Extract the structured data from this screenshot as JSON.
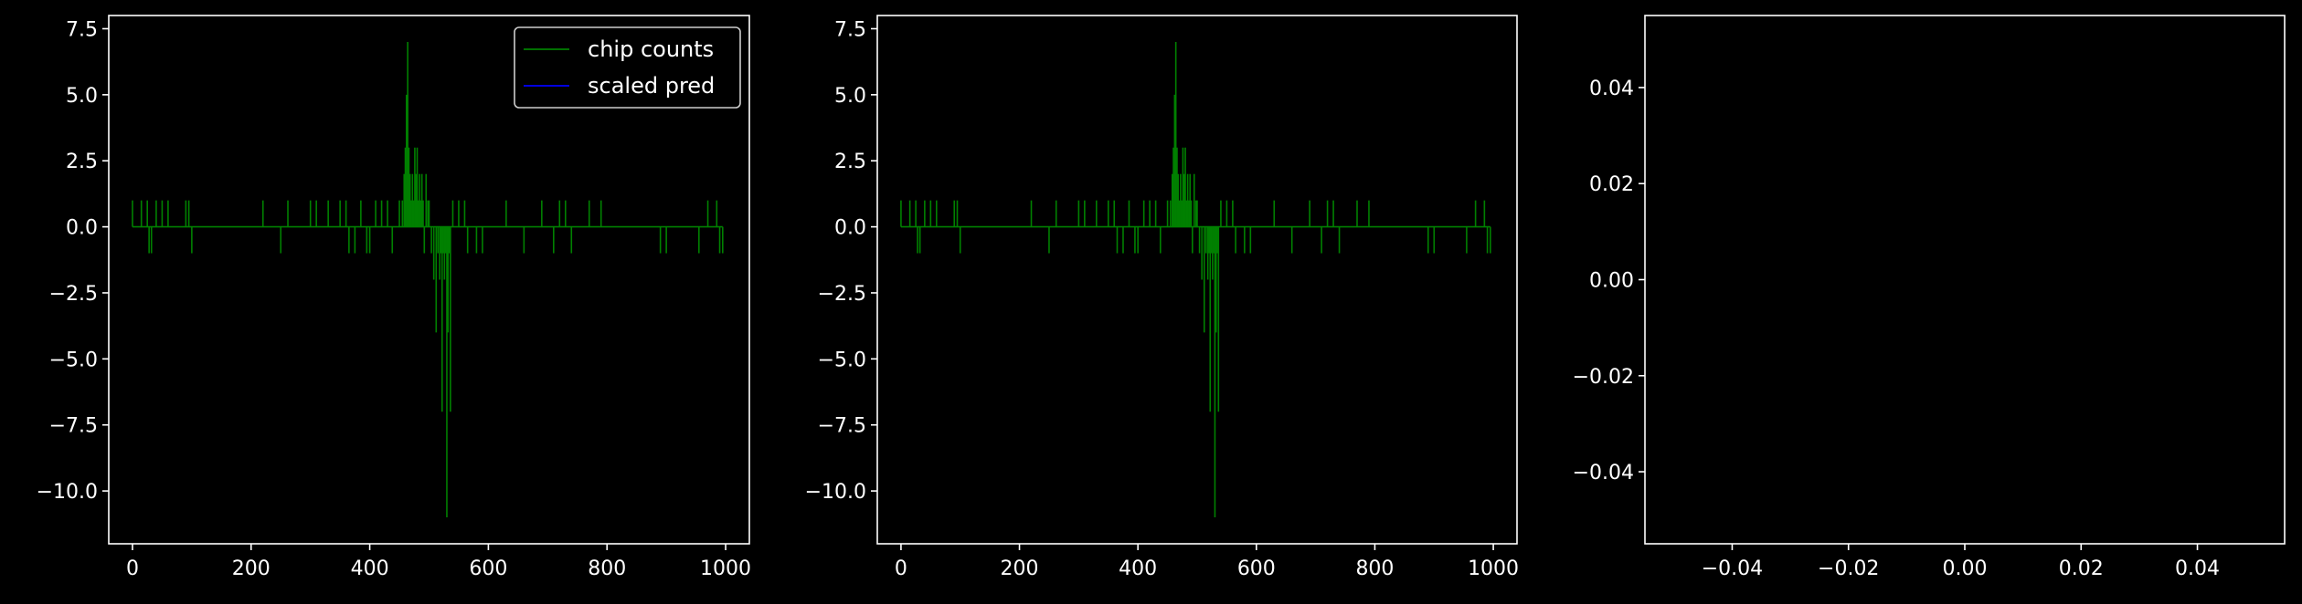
{
  "colors": {
    "background": "#000000",
    "axes": "#ffffff",
    "chip_counts": "#008000",
    "scaled_pred": "#0000ff"
  },
  "chart_data": [
    {
      "type": "line",
      "xlim": [
        -40,
        1040
      ],
      "ylim": [
        -12,
        8
      ],
      "xticks": [
        0,
        200,
        400,
        600,
        800,
        1000
      ],
      "xtick_labels": [
        "0",
        "200",
        "400",
        "600",
        "800",
        "1000"
      ],
      "yticks": [
        7.5,
        5,
        2.5,
        0,
        -2.5,
        -5,
        -7.5,
        -10
      ],
      "ytick_labels": [
        "7.5",
        "5.0",
        "2.5",
        "0.0",
        "−2.5",
        "−5.0",
        "−7.5",
        "−10.0"
      ],
      "legend": {
        "position": "top-right",
        "entries": [
          "chip counts",
          "scaled pred"
        ]
      },
      "series": [
        {
          "name": "chip counts",
          "color": "#008000",
          "spikes": [
            [
              0,
              1
            ],
            [
              15,
              1
            ],
            [
              25,
              1
            ],
            [
              28,
              -1
            ],
            [
              32,
              -1
            ],
            [
              40,
              1
            ],
            [
              50,
              1
            ],
            [
              60,
              1
            ],
            [
              90,
              1
            ],
            [
              95,
              1
            ],
            [
              100,
              -1
            ],
            [
              220,
              1
            ],
            [
              250,
              -1
            ],
            [
              262,
              1
            ],
            [
              300,
              1
            ],
            [
              310,
              1
            ],
            [
              330,
              1
            ],
            [
              350,
              1
            ],
            [
              360,
              1
            ],
            [
              365,
              -1
            ],
            [
              375,
              -1
            ],
            [
              385,
              1
            ],
            [
              395,
              -1
            ],
            [
              400,
              -1
            ],
            [
              410,
              1
            ],
            [
              420,
              1
            ],
            [
              430,
              1
            ],
            [
              438,
              -1
            ],
            [
              450,
              1
            ],
            [
              455,
              1
            ],
            [
              458,
              2
            ],
            [
              460,
              3
            ],
            [
              462,
              5
            ],
            [
              464,
              7
            ],
            [
              466,
              3
            ],
            [
              468,
              2
            ],
            [
              470,
              1
            ],
            [
              472,
              2
            ],
            [
              474,
              1
            ],
            [
              476,
              3
            ],
            [
              478,
              2
            ],
            [
              480,
              3
            ],
            [
              482,
              1
            ],
            [
              484,
              2
            ],
            [
              486,
              1
            ],
            [
              488,
              2
            ],
            [
              490,
              1
            ],
            [
              492,
              -1
            ],
            [
              495,
              2
            ],
            [
              498,
              1
            ],
            [
              500,
              1
            ],
            [
              504,
              -1
            ],
            [
              508,
              -2
            ],
            [
              512,
              -4
            ],
            [
              515,
              -1
            ],
            [
              518,
              -2
            ],
            [
              520,
              -1
            ],
            [
              522,
              -7
            ],
            [
              524,
              -1
            ],
            [
              526,
              -2
            ],
            [
              528,
              -1
            ],
            [
              530,
              -11
            ],
            [
              532,
              -4
            ],
            [
              534,
              -1
            ],
            [
              536,
              -7
            ],
            [
              540,
              1
            ],
            [
              550,
              1
            ],
            [
              560,
              1
            ],
            [
              565,
              -1
            ],
            [
              580,
              -1
            ],
            [
              590,
              -1
            ],
            [
              630,
              1
            ],
            [
              660,
              -1
            ],
            [
              690,
              1
            ],
            [
              710,
              -1
            ],
            [
              720,
              1
            ],
            [
              730,
              1
            ],
            [
              740,
              -1
            ],
            [
              770,
              1
            ],
            [
              790,
              1
            ],
            [
              890,
              -1
            ],
            [
              900,
              -1
            ],
            [
              955,
              -1
            ],
            [
              970,
              1
            ],
            [
              985,
              1
            ],
            [
              990,
              -1
            ],
            [
              995,
              -1
            ]
          ]
        },
        {
          "name": "scaled pred",
          "color": "#0000ff",
          "spikes": []
        }
      ]
    },
    {
      "type": "line",
      "xlim": [
        -40,
        1040
      ],
      "ylim": [
        -12,
        8
      ],
      "xticks": [
        0,
        200,
        400,
        600,
        800,
        1000
      ],
      "xtick_labels": [
        "0",
        "200",
        "400",
        "600",
        "800",
        "1000"
      ],
      "yticks": [
        7.5,
        5,
        2.5,
        0,
        -2.5,
        -5,
        -7.5,
        -10
      ],
      "ytick_labels": [
        "7.5",
        "5.0",
        "2.5",
        "0.0",
        "−2.5",
        "−5.0",
        "−7.5",
        "−10.0"
      ],
      "series": [
        {
          "name": "chip counts",
          "color": "#008000",
          "spikes": [
            [
              0,
              1
            ],
            [
              15,
              1
            ],
            [
              25,
              1
            ],
            [
              28,
              -1
            ],
            [
              32,
              -1
            ],
            [
              40,
              1
            ],
            [
              50,
              1
            ],
            [
              60,
              1
            ],
            [
              90,
              1
            ],
            [
              95,
              1
            ],
            [
              100,
              -1
            ],
            [
              220,
              1
            ],
            [
              250,
              -1
            ],
            [
              262,
              1
            ],
            [
              300,
              1
            ],
            [
              310,
              1
            ],
            [
              330,
              1
            ],
            [
              350,
              1
            ],
            [
              360,
              1
            ],
            [
              365,
              -1
            ],
            [
              375,
              -1
            ],
            [
              385,
              1
            ],
            [
              395,
              -1
            ],
            [
              400,
              -1
            ],
            [
              410,
              1
            ],
            [
              420,
              1
            ],
            [
              430,
              1
            ],
            [
              438,
              -1
            ],
            [
              450,
              1
            ],
            [
              455,
              1
            ],
            [
              458,
              2
            ],
            [
              460,
              3
            ],
            [
              462,
              5
            ],
            [
              464,
              7
            ],
            [
              466,
              3
            ],
            [
              468,
              2
            ],
            [
              470,
              1
            ],
            [
              472,
              2
            ],
            [
              474,
              1
            ],
            [
              476,
              3
            ],
            [
              478,
              2
            ],
            [
              480,
              3
            ],
            [
              482,
              1
            ],
            [
              484,
              2
            ],
            [
              486,
              1
            ],
            [
              488,
              2
            ],
            [
              490,
              1
            ],
            [
              492,
              -1
            ],
            [
              495,
              2
            ],
            [
              498,
              1
            ],
            [
              500,
              1
            ],
            [
              504,
              -1
            ],
            [
              508,
              -2
            ],
            [
              512,
              -4
            ],
            [
              515,
              -1
            ],
            [
              518,
              -2
            ],
            [
              520,
              -1
            ],
            [
              522,
              -7
            ],
            [
              524,
              -1
            ],
            [
              526,
              -2
            ],
            [
              528,
              -1
            ],
            [
              530,
              -11
            ],
            [
              532,
              -4
            ],
            [
              534,
              -1
            ],
            [
              536,
              -7
            ],
            [
              540,
              1
            ],
            [
              550,
              1
            ],
            [
              560,
              1
            ],
            [
              565,
              -1
            ],
            [
              580,
              -1
            ],
            [
              590,
              -1
            ],
            [
              630,
              1
            ],
            [
              660,
              -1
            ],
            [
              690,
              1
            ],
            [
              710,
              -1
            ],
            [
              720,
              1
            ],
            [
              730,
              1
            ],
            [
              740,
              -1
            ],
            [
              770,
              1
            ],
            [
              790,
              1
            ],
            [
              890,
              -1
            ],
            [
              900,
              -1
            ],
            [
              955,
              -1
            ],
            [
              970,
              1
            ],
            [
              985,
              1
            ],
            [
              990,
              -1
            ],
            [
              995,
              -1
            ]
          ]
        }
      ]
    },
    {
      "type": "line",
      "xlim": [
        -0.055,
        0.055
      ],
      "ylim": [
        -0.055,
        0.055
      ],
      "xticks": [
        -0.04,
        -0.02,
        0,
        0.02,
        0.04
      ],
      "xtick_labels": [
        "−0.04",
        "−0.02",
        "0.00",
        "0.02",
        "0.04"
      ],
      "yticks": [
        0.04,
        0.02,
        0,
        -0.02,
        -0.04
      ],
      "ytick_labels": [
        "0.04",
        "0.02",
        "0.00",
        "−0.02",
        "−0.04"
      ],
      "series": []
    }
  ]
}
